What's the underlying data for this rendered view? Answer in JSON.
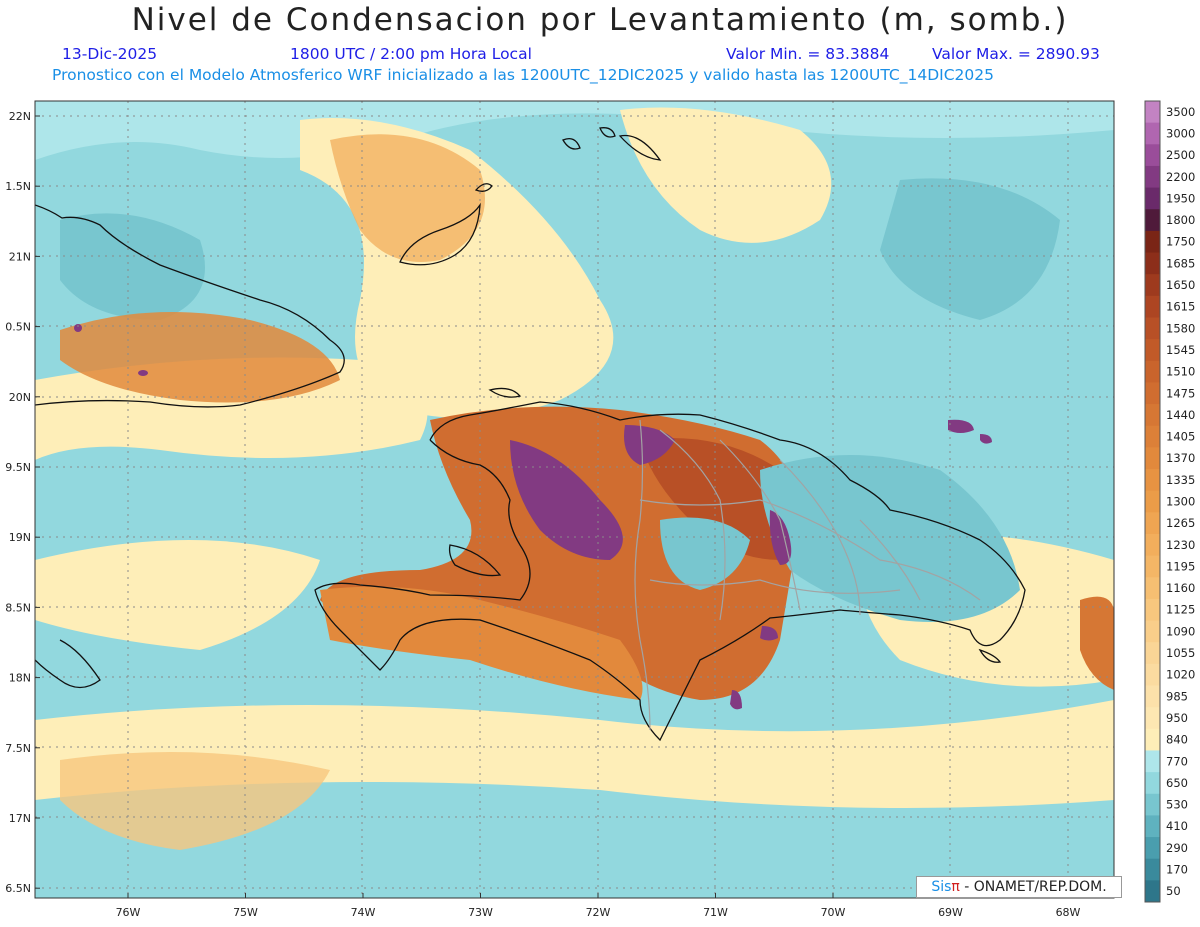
{
  "title": "Nivel de Condensacion por Levantamiento (m, somb.)",
  "date": "13-Dic-2025",
  "time": "1800 UTC / 2:00 pm Hora Local",
  "min_label": "Valor Min. = 83.3884",
  "max_label": "Valor Max. = 2890.93",
  "forecast_note": "Pronostico con el Modelo Atmosferico WRF inicializado a las 1200UTC_12DIC2025 y valido hasta las  1200UTC_14DIC2025",
  "credit": {
    "brand": "Sis",
    "pi": "π",
    "rest": " - ONAMET/REP.DOM."
  },
  "lat_labels": [
    "22N",
    "1.5N",
    "21N",
    "0.5N",
    "20N",
    "9.5N",
    "19N",
    "8.5N",
    "18N",
    "7.5N",
    "17N",
    "6.5N"
  ],
  "lon_labels": [
    "76W",
    "75W",
    "74W",
    "73W",
    "72W",
    "71W",
    "70W",
    "69W",
    "68W"
  ],
  "colorbar": [
    {
      "label": "3500",
      "color": "#c383c3"
    },
    {
      "label": "3000",
      "color": "#b066b0"
    },
    {
      "label": "2500",
      "color": "#9a4d9a"
    },
    {
      "label": "2200",
      "color": "#823a82"
    },
    {
      "label": "1950",
      "color": "#6a2a6a"
    },
    {
      "label": "1800",
      "color": "#4f1a3a"
    },
    {
      "label": "1750",
      "color": "#7a2516"
    },
    {
      "label": "1685",
      "color": "#8c2e1a"
    },
    {
      "label": "1650",
      "color": "#9e3a1e"
    },
    {
      "label": "1615",
      "color": "#ad4522"
    },
    {
      "label": "1580",
      "color": "#b85026"
    },
    {
      "label": "1545",
      "color": "#c15a28"
    },
    {
      "label": "1510",
      "color": "#c9642c"
    },
    {
      "label": "1475",
      "color": "#d06d30"
    },
    {
      "label": "1440",
      "color": "#d67734"
    },
    {
      "label": "1405",
      "color": "#dc8038"
    },
    {
      "label": "1370",
      "color": "#e2893c"
    },
    {
      "label": "1335",
      "color": "#e79342"
    },
    {
      "label": "1300",
      "color": "#eb9c48"
    },
    {
      "label": "1265",
      "color": "#efa552"
    },
    {
      "label": "1230",
      "color": "#f2ae5c"
    },
    {
      "label": "1195",
      "color": "#f4b666"
    },
    {
      "label": "1160",
      "color": "#f6bf72"
    },
    {
      "label": "1125",
      "color": "#f8c77e"
    },
    {
      "label": "1090",
      "color": "#f9ce8a"
    },
    {
      "label": "1055",
      "color": "#fad596"
    },
    {
      "label": "1020",
      "color": "#fbdba0"
    },
    {
      "label": "985",
      "color": "#fce1aa"
    },
    {
      "label": "950",
      "color": "#fde7b2"
    },
    {
      "label": "840",
      "color": "#feeeb8"
    },
    {
      "label": "770",
      "color": "#aee6ea"
    },
    {
      "label": "650",
      "color": "#92d8de"
    },
    {
      "label": "530",
      "color": "#78c6cf"
    },
    {
      "label": "410",
      "color": "#5fb2bf"
    },
    {
      "label": "290",
      "color": "#4a9eae"
    },
    {
      "label": "170",
      "color": "#3a8a9c"
    },
    {
      "label": "50",
      "color": "#2e768a"
    }
  ]
}
